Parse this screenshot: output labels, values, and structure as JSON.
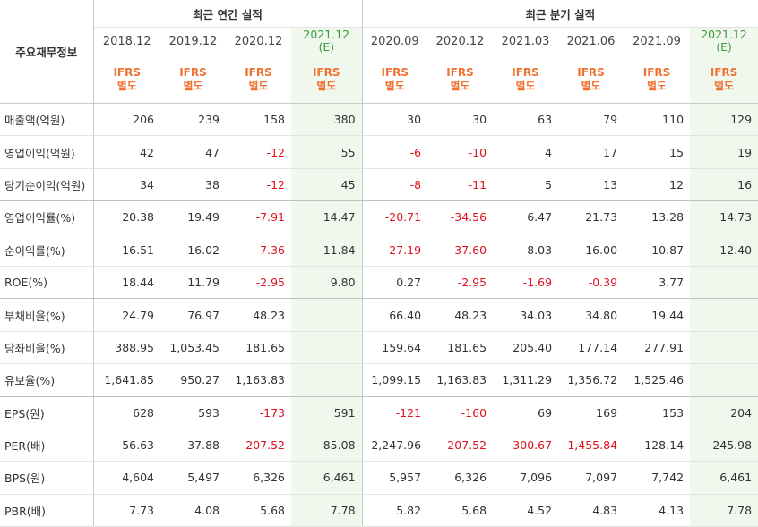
{
  "header": {
    "corner_label": "주요재무정보",
    "annual_group": "최근 연간 실적",
    "quarter_group": "최근 분기 실적",
    "periods": [
      {
        "label": "2018.12",
        "est": ""
      },
      {
        "label": "2019.12",
        "est": ""
      },
      {
        "label": "2020.12",
        "est": ""
      },
      {
        "label": "2021.12",
        "est": "(E)"
      },
      {
        "label": "2020.09",
        "est": ""
      },
      {
        "label": "2020.12",
        "est": ""
      },
      {
        "label": "2021.03",
        "est": ""
      },
      {
        "label": "2021.06",
        "est": ""
      },
      {
        "label": "2021.09",
        "est": ""
      },
      {
        "label": "2021.12",
        "est": "(E)"
      }
    ],
    "basis_line1": "IFRS",
    "basis_line2": "별도"
  },
  "rows": [
    {
      "label": "매출액(억원)",
      "values": [
        "206",
        "239",
        "158",
        "380",
        "30",
        "30",
        "63",
        "79",
        "110",
        "129"
      ]
    },
    {
      "label": "영업이익(억원)",
      "values": [
        "42",
        "47",
        "-12",
        "55",
        "-6",
        "-10",
        "4",
        "17",
        "15",
        "19"
      ]
    },
    {
      "label": "당기순이익(억원)",
      "values": [
        "34",
        "38",
        "-12",
        "45",
        "-8",
        "-11",
        "5",
        "13",
        "12",
        "16"
      ]
    },
    {
      "label": "영업이익률(%)",
      "values": [
        "20.38",
        "19.49",
        "-7.91",
        "14.47",
        "-20.71",
        "-34.56",
        "6.47",
        "21.73",
        "13.28",
        "14.73"
      ]
    },
    {
      "label": "순이익률(%)",
      "values": [
        "16.51",
        "16.02",
        "-7.36",
        "11.84",
        "-27.19",
        "-37.60",
        "8.03",
        "16.00",
        "10.87",
        "12.40"
      ]
    },
    {
      "label": "ROE(%)",
      "values": [
        "18.44",
        "11.79",
        "-2.95",
        "9.80",
        "0.27",
        "-2.95",
        "-1.69",
        "-0.39",
        "3.77",
        ""
      ]
    },
    {
      "label": "부채비율(%)",
      "values": [
        "24.79",
        "76.97",
        "48.23",
        "",
        "66.40",
        "48.23",
        "34.03",
        "34.80",
        "19.44",
        ""
      ]
    },
    {
      "label": "당좌비율(%)",
      "values": [
        "388.95",
        "1,053.45",
        "181.65",
        "",
        "159.64",
        "181.65",
        "205.40",
        "177.14",
        "277.91",
        ""
      ]
    },
    {
      "label": "유보율(%)",
      "values": [
        "1,641.85",
        "950.27",
        "1,163.83",
        "",
        "1,099.15",
        "1,163.83",
        "1,311.29",
        "1,356.72",
        "1,525.46",
        ""
      ]
    },
    {
      "label": "EPS(원)",
      "values": [
        "628",
        "593",
        "-173",
        "591",
        "-121",
        "-160",
        "69",
        "169",
        "153",
        "204"
      ]
    },
    {
      "label": "PER(배)",
      "values": [
        "56.63",
        "37.88",
        "-207.52",
        "85.08",
        "2,247.96",
        "-207.52",
        "-300.67",
        "-1,455.84",
        "128.14",
        "245.98"
      ]
    },
    {
      "label": "BPS(원)",
      "values": [
        "4,604",
        "5,497",
        "6,326",
        "6,461",
        "5,957",
        "6,326",
        "7,096",
        "7,097",
        "7,742",
        "6,461"
      ]
    },
    {
      "label": "PBR(배)",
      "values": [
        "7.73",
        "4.08",
        "5.68",
        "7.78",
        "5.82",
        "5.68",
        "4.52",
        "4.83",
        "4.13",
        "7.78"
      ]
    }
  ],
  "colors": {
    "negative": "#e0101e",
    "estimate_bg": "#f0f8ee",
    "basis": "#f07130",
    "estimate_text": "#3a9a3a"
  }
}
